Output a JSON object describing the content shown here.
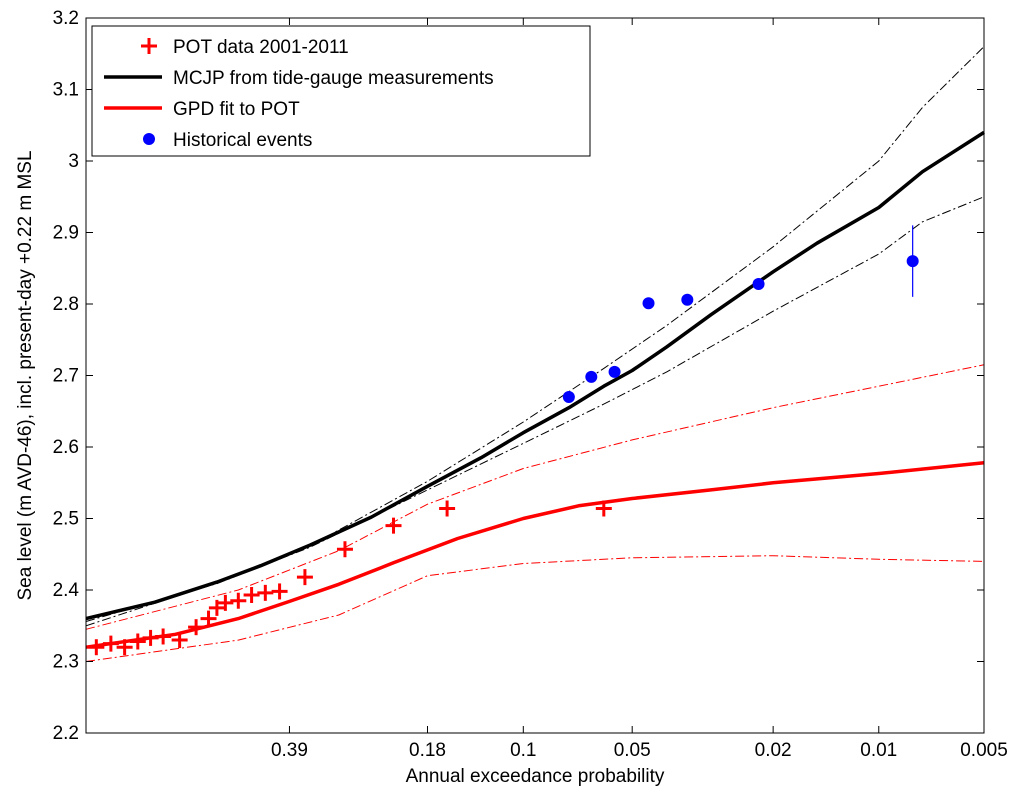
{
  "chart_data": {
    "type": "line",
    "xlabel": "Annual exceedance probability",
    "ylabel": "Sea level (m AVD-46), incl. present-day +0.22 m MSL",
    "x_scale": "-log(-log(1-p))",
    "xlim": [
      0.85,
      0.005
    ],
    "ylim": [
      2.2,
      3.2
    ],
    "x_ticks": [
      {
        "value": 0.39,
        "label": "0.39"
      },
      {
        "value": 0.18,
        "label": "0.18"
      },
      {
        "value": 0.1,
        "label": "0.1"
      },
      {
        "value": 0.05,
        "label": "0.05"
      },
      {
        "value": 0.02,
        "label": "0.02"
      },
      {
        "value": 0.01,
        "label": "0.01"
      },
      {
        "value": 0.005,
        "label": "0.005"
      }
    ],
    "y_ticks": [
      {
        "value": 2.2,
        "label": "2.2"
      },
      {
        "value": 2.3,
        "label": "2.3"
      },
      {
        "value": 2.4,
        "label": "2.4"
      },
      {
        "value": 2.5,
        "label": "2.5"
      },
      {
        "value": 2.6,
        "label": "2.6"
      },
      {
        "value": 2.7,
        "label": "2.7"
      },
      {
        "value": 2.8,
        "label": "2.8"
      },
      {
        "value": 2.9,
        "label": "2.9"
      },
      {
        "value": 3,
        "label": "3"
      },
      {
        "value": 3.1,
        "label": "3.1"
      },
      {
        "value": 3.2,
        "label": "3.2"
      }
    ],
    "grid": false,
    "legend_position": "top-left",
    "legend": [
      {
        "label": "POT data 2001-2011",
        "marker": "plus",
        "color": "#ff0000"
      },
      {
        "label": "MCJP from tide-gauge measurements",
        "marker": "line",
        "color": "#000000"
      },
      {
        "label": "GPD fit to POT",
        "marker": "line",
        "color": "#ff0000"
      },
      {
        "label": "Historical events",
        "marker": "dot",
        "color": "#0000ff"
      }
    ],
    "series": [
      {
        "name": "MCJP from tide-gauge measurements",
        "style": "solid",
        "color": "#000000",
        "width": 3.5,
        "x": [
          0.85,
          0.7,
          0.55,
          0.45,
          0.35,
          0.25,
          0.18,
          0.13,
          0.1,
          0.075,
          0.06,
          0.05,
          0.04,
          0.03,
          0.02,
          0.015,
          0.01,
          0.0075,
          0.005
        ],
        "y": [
          2.36,
          2.383,
          2.411,
          2.434,
          2.463,
          2.502,
          2.545,
          2.585,
          2.62,
          2.655,
          2.685,
          2.707,
          2.74,
          2.785,
          2.845,
          2.885,
          2.935,
          2.985,
          3.04
        ]
      },
      {
        "name": "MCJP upper bound",
        "style": "dashdot",
        "color": "#000000",
        "width": 1,
        "x": [
          0.85,
          0.55,
          0.35,
          0.18,
          0.1,
          0.06,
          0.04,
          0.02,
          0.01,
          0.0075,
          0.005
        ],
        "y": [
          2.35,
          2.41,
          2.462,
          2.552,
          2.635,
          2.71,
          2.77,
          2.88,
          3.0,
          3.075,
          3.16
        ]
      },
      {
        "name": "MCJP lower bound",
        "style": "dashdot",
        "color": "#000000",
        "width": 1,
        "x": [
          0.85,
          0.55,
          0.35,
          0.18,
          0.1,
          0.06,
          0.04,
          0.02,
          0.01,
          0.0075,
          0.005
        ],
        "y": [
          2.356,
          2.409,
          2.46,
          2.54,
          2.605,
          2.66,
          2.705,
          2.79,
          2.87,
          2.915,
          2.95
        ]
      },
      {
        "name": "GPD fit to POT",
        "style": "solid",
        "color": "#ff0000",
        "width": 3.5,
        "x": [
          0.85,
          0.65,
          0.5,
          0.39,
          0.3,
          0.22,
          0.15,
          0.1,
          0.07,
          0.05,
          0.03,
          0.02,
          0.01,
          0.005
        ],
        "y": [
          2.32,
          2.338,
          2.36,
          2.384,
          2.408,
          2.438,
          2.472,
          2.5,
          2.518,
          2.528,
          2.54,
          2.55,
          2.563,
          2.578
        ]
      },
      {
        "name": "GPD upper bound",
        "style": "dashdot",
        "color": "#ff0000",
        "width": 1,
        "x": [
          0.85,
          0.5,
          0.3,
          0.18,
          0.1,
          0.05,
          0.02,
          0.01,
          0.005
        ],
        "y": [
          2.345,
          2.4,
          2.455,
          2.52,
          2.57,
          2.61,
          2.655,
          2.685,
          2.715
        ]
      },
      {
        "name": "GPD lower bound",
        "style": "dashdot",
        "color": "#ff0000",
        "width": 1,
        "x": [
          0.85,
          0.5,
          0.3,
          0.18,
          0.1,
          0.05,
          0.02,
          0.01,
          0.005
        ],
        "y": [
          2.3,
          2.33,
          2.365,
          2.42,
          2.437,
          2.445,
          2.448,
          2.443,
          2.44
        ]
      }
    ],
    "points": [
      {
        "name": "POT data 2001-2011",
        "marker": "plus",
        "color": "#ff0000",
        "x": [
          0.83,
          0.8,
          0.77,
          0.74,
          0.71,
          0.68,
          0.64,
          0.6,
          0.57,
          0.55,
          0.53,
          0.5,
          0.47,
          0.44,
          0.41,
          0.36,
          0.29,
          0.22,
          0.16,
          0.06
        ],
        "y": [
          2.32,
          2.325,
          2.32,
          2.328,
          2.333,
          2.335,
          2.33,
          2.348,
          2.36,
          2.375,
          2.382,
          2.385,
          2.393,
          2.396,
          2.398,
          2.418,
          2.457,
          2.49,
          2.514,
          2.514
        ]
      },
      {
        "name": "Historical events",
        "marker": "dot",
        "color": "#0000ff",
        "x": [
          0.075,
          0.065,
          0.056,
          0.045,
          0.035,
          0.022,
          0.008
        ],
        "y": [
          2.67,
          2.698,
          2.705,
          2.801,
          2.806,
          2.828,
          2.86
        ],
        "error_bar": {
          "index": 6,
          "low": 2.81,
          "high": 2.91
        }
      }
    ]
  }
}
